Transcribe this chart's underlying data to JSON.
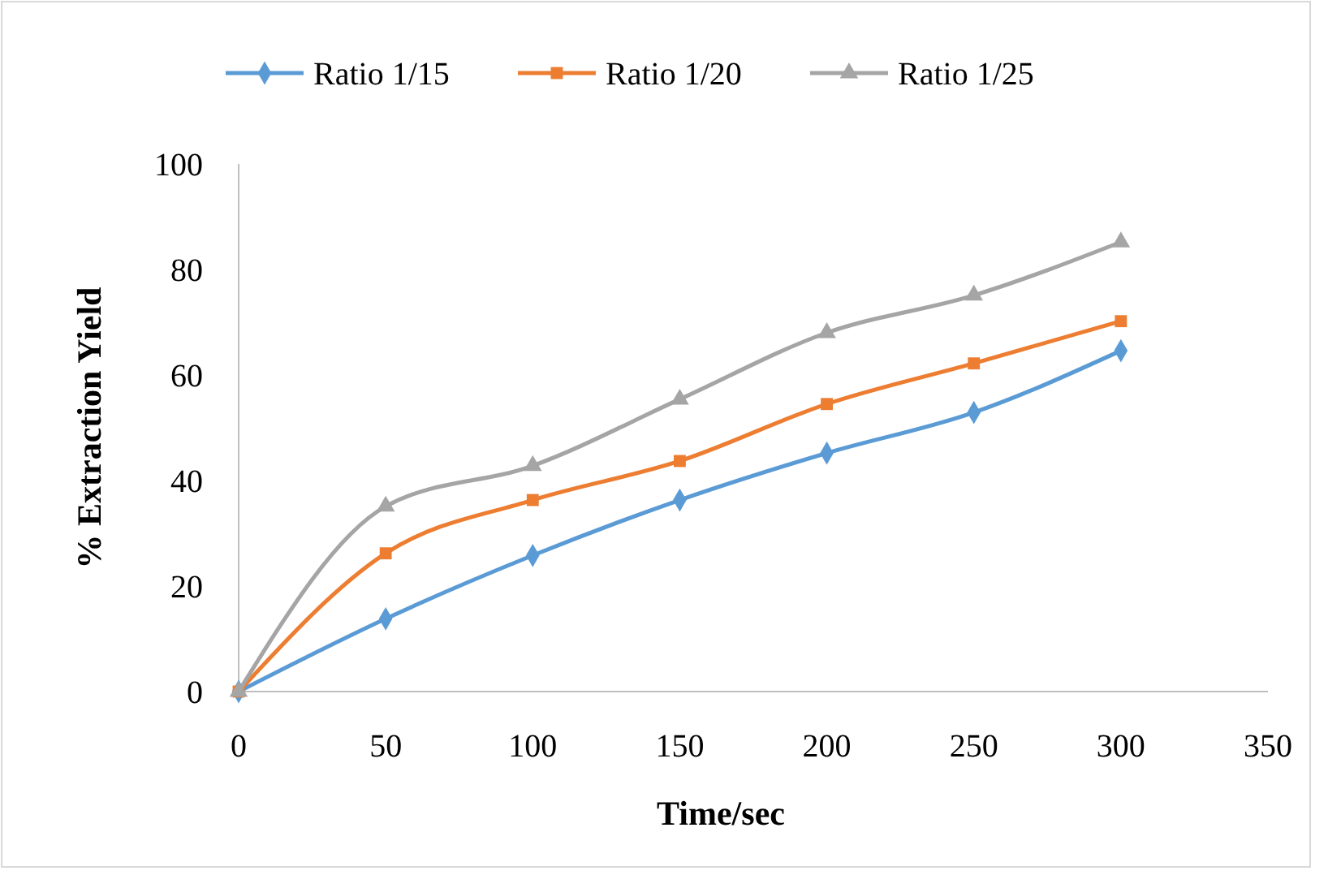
{
  "chart_data": {
    "type": "line",
    "xlabel": "Time/sec",
    "ylabel": "% Extraction Yield",
    "x": [
      0,
      50,
      100,
      150,
      200,
      250,
      300
    ],
    "series": [
      {
        "name": "Ratio 1/15",
        "color": "#5b9bd5",
        "marker": "diamond",
        "values": [
          0,
          13.8,
          25.8,
          36.3,
          45.2,
          52.9,
          64.6
        ]
      },
      {
        "name": "Ratio 1/20",
        "color": "#ed7d31",
        "marker": "square",
        "values": [
          0,
          26.2,
          36.3,
          43.7,
          54.5,
          62.2,
          70.2
        ]
      },
      {
        "name": "Ratio 1/25",
        "color": "#a5a5a5",
        "marker": "triangle",
        "values": [
          0,
          35.1,
          42.8,
          55.4,
          68,
          75.1,
          85.2
        ]
      }
    ],
    "xlim": [
      0,
      350
    ],
    "xticks": [
      0,
      50,
      100,
      150,
      200,
      250,
      300,
      350
    ],
    "ylim": [
      0,
      100
    ],
    "yticks": [
      0,
      20,
      40,
      60,
      80,
      100
    ],
    "grid": false,
    "legend": "top",
    "line_style": "solid"
  }
}
